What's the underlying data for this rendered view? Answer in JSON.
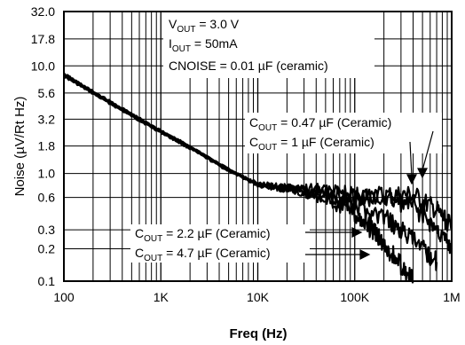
{
  "chart_data": {
    "type": "line",
    "xlabel": "Freq (Hz)",
    "ylabel": "Noise (µV/Rt Hz)",
    "x_scale": "log",
    "y_scale": "log",
    "xlim": [
      100,
      1000000
    ],
    "ylim": [
      0.1,
      32.0
    ],
    "grid": true,
    "x_ticks": [
      {
        "value": 100,
        "label": "100"
      },
      {
        "value": 1000,
        "label": "1K"
      },
      {
        "value": 10000,
        "label": "10K"
      },
      {
        "value": 100000,
        "label": "100K"
      },
      {
        "value": 1000000,
        "label": "1M"
      }
    ],
    "y_ticks": [
      {
        "value": 32.0,
        "label": "32.0"
      },
      {
        "value": 17.8,
        "label": "17.8"
      },
      {
        "value": 10.0,
        "label": "10.0"
      },
      {
        "value": 5.6,
        "label": "5.6"
      },
      {
        "value": 3.2,
        "label": "3.2"
      },
      {
        "value": 1.8,
        "label": "1.8"
      },
      {
        "value": 1.0,
        "label": "1.0"
      },
      {
        "value": 0.6,
        "label": "0.6"
      },
      {
        "value": 0.3,
        "label": "0.3"
      },
      {
        "value": 0.2,
        "label": "0.2"
      },
      {
        "value": 0.1,
        "label": "0.1"
      }
    ],
    "conditions": {
      "vout": {
        "main": "V",
        "sub": "OUT",
        "rest": " = 3.0 V"
      },
      "iout": {
        "main": "I",
        "sub": "OUT",
        "rest": " = 50mA"
      },
      "cnoise": "CNOISE = 0.01 µF (ceramic)"
    },
    "series": [
      {
        "legend": {
          "main": "C",
          "sub": "OUT",
          "rest": " = 0.47 µF (Ceramic)"
        },
        "points": [
          [
            100,
            8.0
          ],
          [
            200,
            5.5
          ],
          [
            500,
            3.4
          ],
          [
            1000,
            2.4
          ],
          [
            2000,
            1.7
          ],
          [
            5000,
            1.05
          ],
          [
            10000,
            0.78
          ],
          [
            20000,
            0.72
          ],
          [
            50000,
            0.68
          ],
          [
            100000,
            0.62
          ],
          [
            200000,
            0.62
          ],
          [
            400000,
            0.63
          ],
          [
            700000,
            0.45
          ],
          [
            1000000,
            0.32
          ]
        ]
      },
      {
        "legend": {
          "main": "C",
          "sub": "OUT",
          "rest": " = 1 µF (Ceramic)"
        },
        "points": [
          [
            100,
            8.5
          ],
          [
            200,
            5.8
          ],
          [
            500,
            3.6
          ],
          [
            1000,
            2.5
          ],
          [
            2000,
            1.8
          ],
          [
            5000,
            1.1
          ],
          [
            10000,
            0.8
          ],
          [
            20000,
            0.74
          ],
          [
            50000,
            0.7
          ],
          [
            100000,
            0.6
          ],
          [
            200000,
            0.58
          ],
          [
            400000,
            0.5
          ],
          [
            700000,
            0.3
          ],
          [
            1000000,
            0.2
          ]
        ]
      },
      {
        "legend": {
          "main": "C",
          "sub": "OUT",
          "rest": " = 2.2 µF (Ceramic)"
        },
        "points": [
          [
            100,
            8.2
          ],
          [
            200,
            5.6
          ],
          [
            500,
            3.5
          ],
          [
            1000,
            2.45
          ],
          [
            2000,
            1.75
          ],
          [
            5000,
            1.08
          ],
          [
            10000,
            0.79
          ],
          [
            20000,
            0.73
          ],
          [
            50000,
            0.62
          ],
          [
            100000,
            0.5
          ],
          [
            200000,
            0.4
          ],
          [
            300000,
            0.3
          ],
          [
            500000,
            0.2
          ],
          [
            700000,
            0.15
          ]
        ]
      },
      {
        "legend": {
          "main": "C",
          "sub": "OUT",
          "rest": " = 4.7 µF (Ceramic)"
        },
        "points": [
          [
            100,
            8.3
          ],
          [
            200,
            5.7
          ],
          [
            500,
            3.5
          ],
          [
            1000,
            2.5
          ],
          [
            2000,
            1.76
          ],
          [
            5000,
            1.1
          ],
          [
            10000,
            0.8
          ],
          [
            20000,
            0.72
          ],
          [
            50000,
            0.6
          ],
          [
            100000,
            0.42
          ],
          [
            150000,
            0.3
          ],
          [
            200000,
            0.22
          ],
          [
            300000,
            0.14
          ],
          [
            400000,
            0.1
          ]
        ]
      }
    ]
  }
}
